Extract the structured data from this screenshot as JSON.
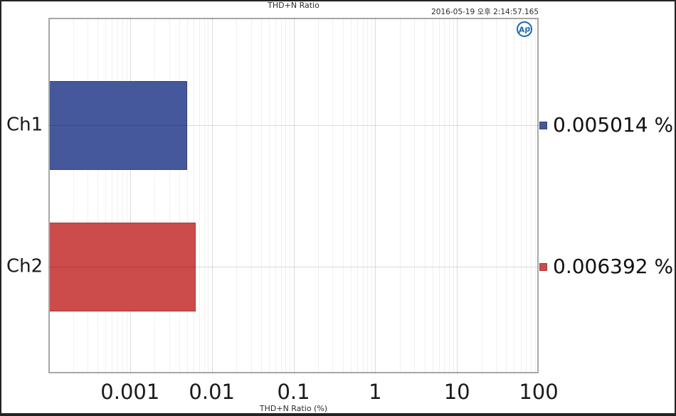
{
  "header": {
    "title": "THD+N Ratio",
    "timestamp": "2016-05-19 오후 2:14:57.165",
    "logo_text": "Ap"
  },
  "axis": {
    "x_label": "THD+N Ratio (%)",
    "x_scale": "log",
    "x_min": 0.0001,
    "x_max": 100,
    "x_ticks": [
      {
        "value": 0.001,
        "label": "0.001"
      },
      {
        "value": 0.01,
        "label": "0.01"
      },
      {
        "value": 0.1,
        "label": "0.1"
      },
      {
        "value": 1,
        "label": "1"
      },
      {
        "value": 10,
        "label": "10"
      },
      {
        "value": 100,
        "label": "100"
      }
    ]
  },
  "bars": [
    {
      "category": "Ch1",
      "value": 0.005014,
      "legend_label": "0.005014 %",
      "fill": "#45589B",
      "border": "#35457A"
    },
    {
      "category": "Ch2",
      "value": 0.006392,
      "legend_label": "0.006392 %",
      "fill": "#CC4B4B",
      "border": "#A33C3C"
    }
  ],
  "chart_data": {
    "type": "bar",
    "orientation": "horizontal",
    "title": "THD+N Ratio",
    "xlabel": "THD+N Ratio (%)",
    "xscale": "log",
    "xlim": [
      0.0001,
      100
    ],
    "x_tick_labels": [
      "0.001",
      "0.01",
      "0.1",
      "1",
      "10",
      "100"
    ],
    "categories": [
      "Ch1",
      "Ch2"
    ],
    "values": [
      0.005014,
      0.006392
    ],
    "value_labels": [
      "0.005014 %",
      "0.006392 %"
    ],
    "series_colors": [
      "#45589B",
      "#CC4B4B"
    ],
    "grid": true,
    "legend_position": "right",
    "timestamp": "2016-05-19 오후 2:14:57.165"
  }
}
